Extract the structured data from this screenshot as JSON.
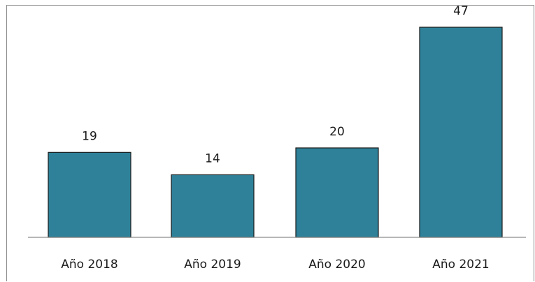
{
  "chart_data": {
    "type": "bar",
    "categories": [
      "Año 2018",
      "Año 2019",
      "Año 2020",
      "Año 2021"
    ],
    "values": [
      19,
      14,
      20,
      47
    ],
    "title": "",
    "xlabel": "",
    "ylabel": "",
    "ylim": [
      0,
      52
    ],
    "grid": false,
    "legend": "none",
    "bar_color": "#2E8199",
    "bar_border_color": "#1a1a1a"
  }
}
